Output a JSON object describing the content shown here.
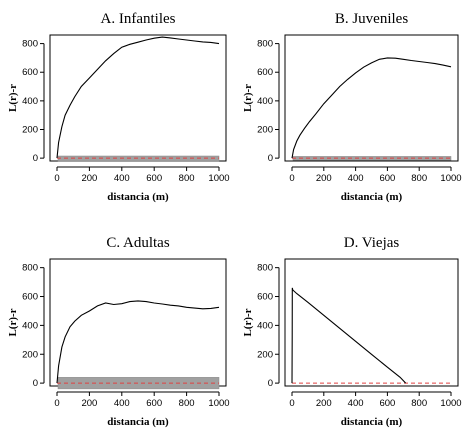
{
  "chart_data": [
    {
      "type": "line",
      "title": "A. Infantiles",
      "xlabel": "distancia (m)",
      "ylabel": "L(r)-r",
      "xlim": [
        0,
        1000
      ],
      "ylim": [
        -20,
        860
      ],
      "xticks": [
        0,
        200,
        400,
        600,
        800,
        1000
      ],
      "yticks": [
        0,
        200,
        400,
        600,
        800
      ],
      "envelope": {
        "lower": -20,
        "upper": 15
      },
      "expected": 0,
      "series": [
        {
          "x": [
            0,
            10,
            30,
            50,
            80,
            110,
            150,
            200,
            250,
            300,
            350,
            400,
            450,
            500,
            550,
            600,
            650,
            700,
            750,
            800,
            850,
            900,
            950,
            1000
          ],
          "y": [
            0,
            110,
            220,
            300,
            370,
            430,
            500,
            560,
            620,
            680,
            730,
            775,
            795,
            810,
            825,
            838,
            845,
            840,
            832,
            825,
            818,
            812,
            808,
            800
          ]
        }
      ]
    },
    {
      "type": "line",
      "title": "B. Juveniles",
      "xlabel": "distancia (m)",
      "ylabel": "L(r)-r",
      "xlim": [
        0,
        1000
      ],
      "ylim": [
        -20,
        860
      ],
      "xticks": [
        0,
        200,
        400,
        600,
        800,
        1000
      ],
      "yticks": [
        0,
        200,
        400,
        600,
        800
      ],
      "envelope": {
        "lower": -15,
        "upper": 12
      },
      "expected": 0,
      "series": [
        {
          "x": [
            0,
            10,
            30,
            50,
            80,
            110,
            150,
            200,
            250,
            300,
            350,
            400,
            450,
            500,
            550,
            600,
            650,
            700,
            750,
            800,
            850,
            900,
            950,
            1000
          ],
          "y": [
            0,
            60,
            120,
            160,
            210,
            255,
            310,
            380,
            440,
            500,
            550,
            595,
            635,
            665,
            690,
            700,
            698,
            690,
            682,
            675,
            668,
            660,
            650,
            638
          ]
        }
      ]
    },
    {
      "type": "line",
      "title": "C. Adultas",
      "xlabel": "distancia (m)",
      "ylabel": "L(r)-r",
      "xlim": [
        0,
        1000
      ],
      "ylim": [
        -20,
        860
      ],
      "xticks": [
        0,
        200,
        400,
        600,
        800,
        1000
      ],
      "yticks": [
        0,
        200,
        400,
        600,
        800
      ],
      "envelope": {
        "lower": -40,
        "upper": 40
      },
      "expected": 0,
      "series": [
        {
          "x": [
            0,
            10,
            30,
            50,
            80,
            110,
            150,
            200,
            250,
            300,
            350,
            400,
            450,
            500,
            550,
            600,
            650,
            700,
            750,
            800,
            850,
            900,
            950,
            1000
          ],
          "y": [
            0,
            120,
            250,
            320,
            390,
            430,
            470,
            500,
            535,
            555,
            545,
            550,
            565,
            570,
            565,
            555,
            548,
            540,
            535,
            525,
            520,
            515,
            518,
            525
          ]
        }
      ]
    },
    {
      "type": "line",
      "title": "D. Viejas",
      "xlabel": "distancia (m)",
      "ylabel": "L(r)-r",
      "xlim": [
        0,
        1000
      ],
      "ylim": [
        -20,
        860
      ],
      "xticks": [
        0,
        200,
        400,
        600,
        800,
        1000
      ],
      "yticks": [
        0,
        200,
        400,
        600,
        800
      ],
      "envelope": null,
      "expected": 0,
      "series": [
        {
          "x": [
            0,
            1,
            2,
            5,
            30,
            100,
            200,
            300,
            400,
            500,
            600,
            680,
            715
          ],
          "y": [
            0,
            320,
            660,
            645,
            620,
            560,
            470,
            380,
            290,
            200,
            110,
            40,
            0
          ]
        }
      ]
    }
  ]
}
